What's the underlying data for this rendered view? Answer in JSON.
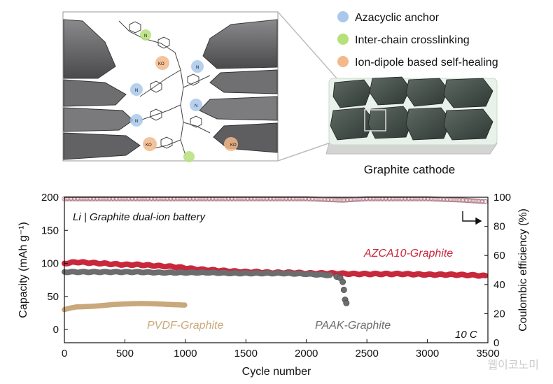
{
  "legend": {
    "items": [
      {
        "label": "Azacyclic anchor",
        "color": "#a9c8ea"
      },
      {
        "label": "Inter-chain crosslinking",
        "color": "#b6e07a"
      },
      {
        "label": "Ion-dipole based self-healing",
        "color": "#f3b98a"
      }
    ]
  },
  "schematic": {
    "cathode_label": "Graphite cathode",
    "chem_labels": {
      "ko": "KO",
      "n": "N"
    }
  },
  "watermark": "웹이코노미",
  "chart_data": {
    "type": "scatter",
    "title": "Li | Graphite dual-ion battery",
    "rate_label": "10 C",
    "xlabel": "Cycle number",
    "ylabel": "Capacity (mAh g⁻¹)",
    "y2label": "Coulombic efficiency (%)",
    "xlim": [
      0,
      3500
    ],
    "ylim": [
      -20,
      200
    ],
    "y2lim": [
      0,
      100
    ],
    "xticks": [
      0,
      500,
      1000,
      1500,
      2000,
      2500,
      3000,
      3500
    ],
    "yticks": [
      0,
      50,
      100,
      150,
      200
    ],
    "y2ticks": [
      0,
      20,
      40,
      60,
      80,
      100
    ],
    "series": [
      {
        "name": "AZCA10-Graphite",
        "color": "#c8283c",
        "x": [
          0,
          100,
          200,
          300,
          400,
          500,
          600,
          700,
          800,
          900,
          1000,
          1100,
          1200,
          1300,
          1400,
          1500,
          1600,
          1700,
          1800,
          1900,
          2000,
          2200,
          2400,
          2600,
          2800,
          3000,
          3200,
          3400,
          3480
        ],
        "y": [
          100,
          102,
          101,
          100,
          99,
          98,
          98,
          97,
          96,
          95,
          93,
          91,
          90,
          89,
          88,
          87,
          87,
          86,
          86,
          86,
          85,
          85,
          84,
          84,
          84,
          83,
          83,
          82,
          81
        ]
      },
      {
        "name": "PAAK-Graphite",
        "color": "#6d6d6f",
        "x": [
          0,
          200,
          400,
          600,
          800,
          1000,
          1200,
          1400,
          1600,
          1800,
          2000,
          2100,
          2200,
          2250,
          2280,
          2300,
          2310,
          2320,
          2330
        ],
        "y": [
          87,
          87,
          87,
          87,
          86,
          86,
          86,
          85,
          85,
          85,
          84,
          83,
          82,
          80,
          78,
          72,
          60,
          45,
          40
        ]
      },
      {
        "name": "PVDF-Graphite",
        "color": "#c9a87c",
        "x": [
          0,
          50,
          100,
          200,
          300,
          400,
          500,
          600,
          700,
          800,
          900,
          1000
        ],
        "y": [
          30,
          33,
          35,
          36,
          37,
          38,
          38,
          38,
          38,
          38,
          38,
          38
        ]
      },
      {
        "name": "Coulombic efficiency",
        "axis": "right",
        "color": "#b07a88",
        "x": [
          0,
          500,
          1000,
          1500,
          2000,
          2300,
          2500,
          3000,
          3300,
          3480
        ],
        "y": [
          99,
          99,
          99,
          99,
          99,
          98,
          99,
          99,
          98,
          97
        ]
      }
    ]
  }
}
